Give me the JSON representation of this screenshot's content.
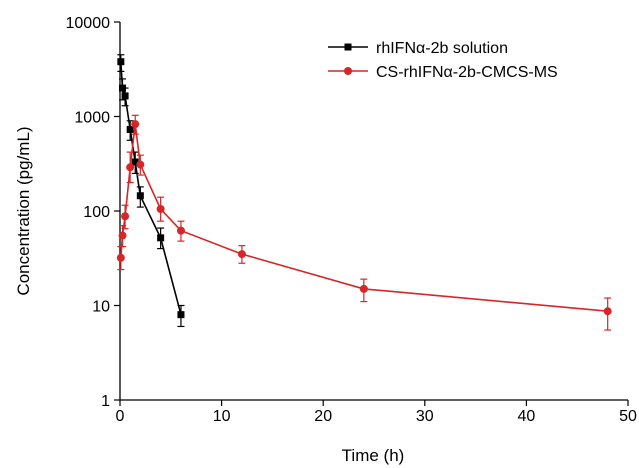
{
  "chart_data": {
    "type": "line",
    "xlabel": "Time (h)",
    "ylabel": "Concentration (pg/mL)",
    "xlim": [
      0,
      50
    ],
    "ylim": [
      1,
      10000
    ],
    "yscale": "log",
    "x_ticks": [
      0,
      10,
      20,
      30,
      40,
      50
    ],
    "y_ticks": [
      1,
      10,
      100,
      1000,
      10000
    ],
    "x_tick_labels": [
      "0",
      "10",
      "20",
      "30",
      "40",
      "50"
    ],
    "y_tick_labels": [
      "1",
      "10",
      "100",
      "1000",
      "10000"
    ],
    "grid": false,
    "legend": "top-right",
    "series": [
      {
        "name": "rhIFNα-2b solution",
        "color": "#000000",
        "marker": "square",
        "x": [
          0.083,
          0.25,
          0.5,
          1,
          1.5,
          2,
          4,
          6
        ],
        "y": [
          3800,
          2000,
          1650,
          730,
          330,
          145,
          52,
          8
        ],
        "y_low": [
          3000,
          1500,
          1300,
          560,
          250,
          110,
          40,
          6
        ],
        "y_high": [
          4500,
          2500,
          2000,
          900,
          420,
          180,
          66,
          10
        ]
      },
      {
        "name": "CS-rhIFNα-2b-CMCS-MS",
        "color": "#d62728",
        "marker": "circle",
        "x": [
          0.083,
          0.25,
          0.5,
          1,
          1.5,
          2,
          4,
          6,
          12,
          24,
          48
        ],
        "y": [
          32,
          55,
          88,
          290,
          830,
          310,
          105,
          62,
          35,
          15,
          8.7
        ],
        "y_low": [
          24,
          42,
          65,
          200,
          650,
          240,
          78,
          48,
          28,
          11,
          5.5
        ],
        "y_high": [
          42,
          70,
          115,
          420,
          1030,
          390,
          140,
          78,
          43,
          19,
          12
        ]
      }
    ]
  }
}
